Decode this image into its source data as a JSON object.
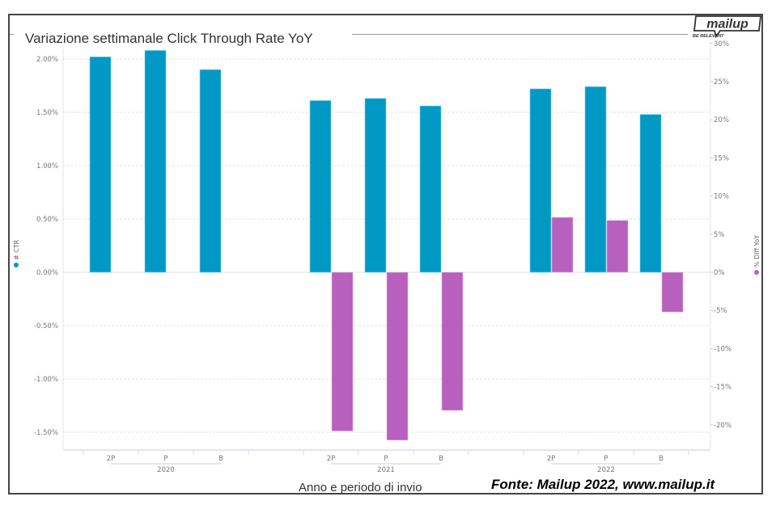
{
  "chart_data": {
    "type": "bar",
    "title": "Variazione settimanale Click Through Rate YoY",
    "xlabel": "Anno e periodo di invio",
    "ylabel": "# CTR",
    "y2label": "% Diff YoY",
    "source": "Fonte: Mailup 2022, www.mailup.it",
    "groups": [
      {
        "year": "2020",
        "categories": [
          "2P",
          "P",
          "B"
        ]
      },
      {
        "year": "2021",
        "categories": [
          "2P",
          "P",
          "B"
        ]
      },
      {
        "year": "2022",
        "categories": [
          "2P",
          "P",
          "B"
        ]
      }
    ],
    "series": [
      {
        "name": "# CTR",
        "axis": "left",
        "color": "#0099C6",
        "values": [
          2.02,
          2.08,
          1.9,
          1.61,
          1.63,
          1.56,
          1.72,
          1.74,
          1.48
        ]
      },
      {
        "name": "% Diff YoY",
        "axis": "right",
        "color": "#B760BD",
        "values": [
          null,
          null,
          null,
          -20.8,
          -22.0,
          -18.1,
          7.2,
          6.8,
          -5.2
        ]
      }
    ],
    "y_left": {
      "ticks": [
        2.0,
        1.5,
        1.0,
        0.5,
        0.0,
        -0.5,
        -1.0,
        -1.5
      ],
      "tick_labels": [
        "2.00%",
        "1.50%",
        "1.00%",
        "0.50%",
        "0.00%",
        "-0.50%",
        "-1.00%",
        "-1.50%"
      ],
      "range": [
        -1.65,
        2.15
      ]
    },
    "y_right": {
      "ticks": [
        30,
        25,
        20,
        15,
        10,
        5,
        0,
        -5,
        -10,
        -15,
        -20
      ],
      "tick_labels": [
        "30%",
        "25%",
        "20%",
        "15%",
        "10%",
        "5%",
        "0%",
        "-5%",
        "-10%",
        "-15%",
        "-20%"
      ],
      "range": [
        -23.76,
        31.0
      ]
    },
    "grid": true,
    "legend": [
      "left-vertical: # CTR",
      "right-vertical: % Diff YoY"
    ]
  },
  "brand": {
    "logo_text": "mailup",
    "tagline": "BE RELEVANT"
  }
}
